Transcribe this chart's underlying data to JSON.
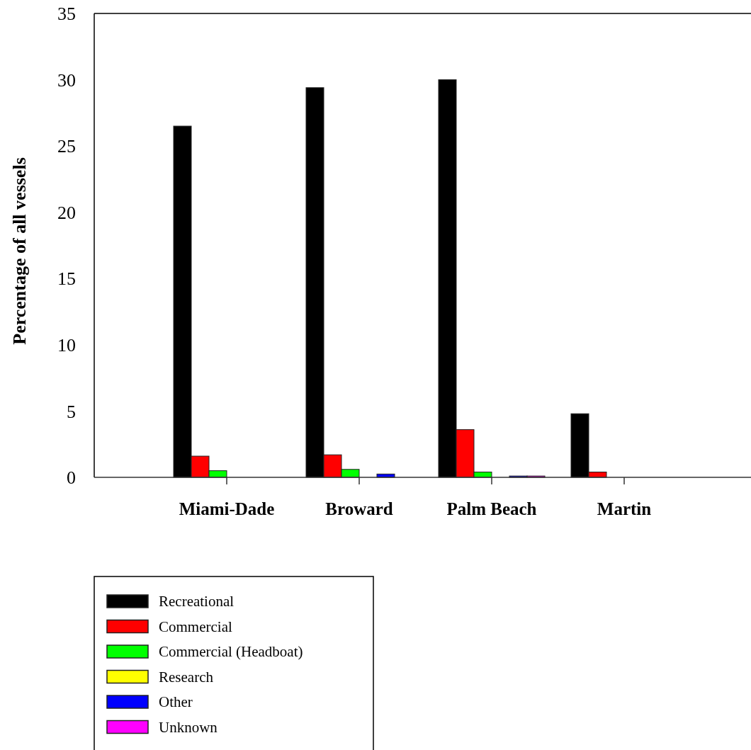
{
  "chart_data": {
    "type": "bar",
    "ylabel": "Percentage of all vessels",
    "categories": [
      "Miami-Dade",
      "Broward",
      "Palm Beach",
      "Martin"
    ],
    "series": [
      {
        "name": "Recreational",
        "color": "#000000",
        "values": [
          26.5,
          29.4,
          30.0,
          4.8
        ]
      },
      {
        "name": "Commercial",
        "color": "#ff0000",
        "values": [
          1.6,
          1.7,
          3.6,
          0.4
        ]
      },
      {
        "name": "Commercial (Headboat)",
        "color": "#00ff00",
        "values": [
          0.5,
          0.6,
          0.4,
          0
        ]
      },
      {
        "name": "Research",
        "color": "#ffff00",
        "values": [
          0,
          0,
          0,
          0
        ]
      },
      {
        "name": "Other",
        "color": "#0000ff",
        "values": [
          0,
          0.25,
          0.1,
          0
        ]
      },
      {
        "name": "Unknown",
        "color": "#ff00ff",
        "values": [
          0,
          0,
          0.1,
          0
        ]
      }
    ],
    "ylim": [
      0,
      35
    ],
    "yticks": [
      0,
      5,
      10,
      15,
      20,
      25,
      30,
      35
    ],
    "grid": false,
    "legend": "bottom left"
  }
}
